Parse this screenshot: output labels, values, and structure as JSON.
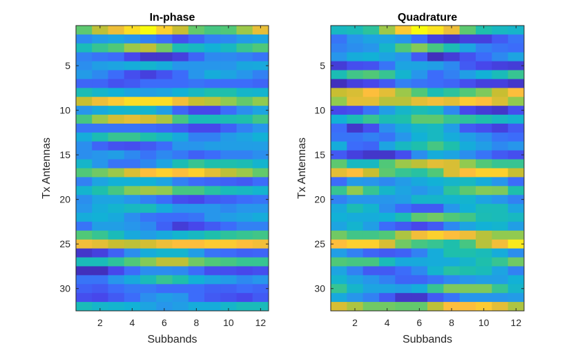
{
  "chart_data": [
    {
      "type": "heatmap",
      "title": "In-phase",
      "xlabel": "Subbands",
      "ylabel": "Tx Antennas",
      "xlim": [
        0.5,
        12.5
      ],
      "ylim": [
        0.5,
        32.5
      ],
      "y_reversed": true,
      "xticks": [
        2,
        4,
        6,
        8,
        10,
        12
      ],
      "yticks": [
        5,
        10,
        15,
        20,
        25,
        30
      ],
      "colormap": "parula",
      "grid": false,
      "values": [
        [
          0.62,
          0.78,
          0.87,
          0.95,
          1.0,
          0.93,
          0.8,
          0.63,
          0.58,
          0.6,
          0.72,
          0.86
        ],
        [
          0.27,
          0.32,
          0.35,
          0.3,
          0.25,
          0.2,
          0.12,
          0.18,
          0.25,
          0.27,
          0.32,
          0.35
        ],
        [
          0.47,
          0.55,
          0.6,
          0.72,
          0.78,
          0.65,
          0.48,
          0.45,
          0.4,
          0.45,
          0.55,
          0.6
        ],
        [
          0.25,
          0.22,
          0.2,
          0.1,
          0.05,
          0.05,
          0.08,
          0.18,
          0.27,
          0.27,
          0.25,
          0.22
        ],
        [
          0.28,
          0.33,
          0.35,
          0.38,
          0.42,
          0.38,
          0.3,
          0.3,
          0.3,
          0.3,
          0.36,
          0.37
        ],
        [
          0.32,
          0.27,
          0.2,
          0.12,
          0.08,
          0.13,
          0.2,
          0.3,
          0.38,
          0.35,
          0.3,
          0.25
        ],
        [
          0.18,
          0.18,
          0.13,
          0.15,
          0.2,
          0.2,
          0.2,
          0.22,
          0.2,
          0.2,
          0.2,
          0.18
        ],
        [
          0.48,
          0.43,
          0.4,
          0.35,
          0.33,
          0.35,
          0.4,
          0.45,
          0.5,
          0.5,
          0.43,
          0.42
        ],
        [
          0.8,
          0.87,
          0.92,
          0.95,
          0.95,
          0.95,
          0.88,
          0.8,
          0.77,
          0.7,
          0.63,
          0.7
        ],
        [
          0.3,
          0.37,
          0.42,
          0.43,
          0.42,
          0.33,
          0.18,
          0.1,
          0.1,
          0.2,
          0.28,
          0.35
        ],
        [
          0.58,
          0.72,
          0.82,
          0.85,
          0.82,
          0.75,
          0.58,
          0.47,
          0.47,
          0.48,
          0.5,
          0.57
        ],
        [
          0.22,
          0.22,
          0.22,
          0.22,
          0.2,
          0.18,
          0.15,
          0.1,
          0.1,
          0.17,
          0.25,
          0.3
        ],
        [
          0.38,
          0.48,
          0.55,
          0.55,
          0.5,
          0.45,
          0.37,
          0.25,
          0.25,
          0.32,
          0.35,
          0.4
        ],
        [
          0.28,
          0.18,
          0.13,
          0.12,
          0.15,
          0.2,
          0.3,
          0.3,
          0.33,
          0.33,
          0.33,
          0.33
        ],
        [
          0.28,
          0.3,
          0.33,
          0.27,
          0.22,
          0.27,
          0.23,
          0.17,
          0.2,
          0.25,
          0.25,
          0.28
        ],
        [
          0.43,
          0.3,
          0.22,
          0.22,
          0.27,
          0.35,
          0.48,
          0.55,
          0.5,
          0.5,
          0.48,
          0.42
        ],
        [
          0.6,
          0.65,
          0.72,
          0.83,
          0.9,
          0.93,
          0.9,
          0.93,
          0.85,
          0.78,
          0.72,
          0.63
        ],
        [
          0.25,
          0.35,
          0.4,
          0.4,
          0.4,
          0.35,
          0.25,
          0.2,
          0.18,
          0.17,
          0.15,
          0.2
        ],
        [
          0.42,
          0.5,
          0.58,
          0.68,
          0.73,
          0.7,
          0.58,
          0.58,
          0.52,
          0.47,
          0.45,
          0.42
        ],
        [
          0.28,
          0.35,
          0.35,
          0.3,
          0.25,
          0.2,
          0.12,
          0.1,
          0.15,
          0.17,
          0.2,
          0.22
        ],
        [
          0.3,
          0.38,
          0.42,
          0.45,
          0.47,
          0.38,
          0.3,
          0.3,
          0.3,
          0.27,
          0.3,
          0.3
        ],
        [
          0.38,
          0.4,
          0.37,
          0.28,
          0.22,
          0.2,
          0.2,
          0.22,
          0.3,
          0.33,
          0.35,
          0.38
        ],
        [
          0.22,
          0.33,
          0.33,
          0.3,
          0.27,
          0.17,
          0.07,
          0.1,
          0.15,
          0.2,
          0.25,
          0.25
        ],
        [
          0.6,
          0.55,
          0.47,
          0.37,
          0.33,
          0.37,
          0.42,
          0.45,
          0.5,
          0.53,
          0.55,
          0.57
        ],
        [
          0.88,
          0.85,
          0.8,
          0.78,
          0.82,
          0.87,
          0.9,
          0.9,
          0.92,
          0.92,
          0.9,
          0.88
        ],
        [
          0.05,
          0.08,
          0.17,
          0.28,
          0.38,
          0.42,
          0.42,
          0.33,
          0.22,
          0.2,
          0.17,
          0.18
        ],
        [
          0.47,
          0.47,
          0.53,
          0.6,
          0.68,
          0.78,
          0.78,
          0.65,
          0.6,
          0.58,
          0.55,
          0.55
        ],
        [
          0.03,
          0.03,
          0.1,
          0.2,
          0.28,
          0.28,
          0.27,
          0.2,
          0.12,
          0.12,
          0.1,
          0.12
        ],
        [
          0.22,
          0.22,
          0.3,
          0.37,
          0.47,
          0.55,
          0.5,
          0.4,
          0.35,
          0.32,
          0.27,
          0.3
        ],
        [
          0.17,
          0.15,
          0.2,
          0.23,
          0.23,
          0.2,
          0.2,
          0.2,
          0.17,
          0.17,
          0.2,
          0.18
        ],
        [
          0.12,
          0.1,
          0.15,
          0.2,
          0.28,
          0.33,
          0.3,
          0.2,
          0.15,
          0.13,
          0.1,
          0.15
        ],
        [
          0.47,
          0.43,
          0.42,
          0.4,
          0.35,
          0.3,
          0.33,
          0.38,
          0.38,
          0.43,
          0.47,
          0.47
        ]
      ]
    },
    {
      "type": "heatmap",
      "title": "Quadrature",
      "xlabel": "Subbands",
      "ylabel": "Tx Antennas",
      "xlim": [
        0.5,
        12.5
      ],
      "ylim": [
        0.5,
        32.5
      ],
      "y_reversed": true,
      "xticks": [
        2,
        4,
        6,
        8,
        10,
        12
      ],
      "yticks": [
        5,
        10,
        15,
        20,
        25,
        30
      ],
      "colormap": "parula",
      "grid": false,
      "values": [
        [
          0.45,
          0.47,
          0.53,
          0.72,
          0.92,
          1.0,
          0.96,
          0.87,
          0.62,
          0.5,
          0.45,
          0.43
        ],
        [
          0.22,
          0.3,
          0.35,
          0.35,
          0.3,
          0.2,
          0.08,
          0.05,
          0.08,
          0.08,
          0.15,
          0.22
        ],
        [
          0.25,
          0.28,
          0.3,
          0.43,
          0.6,
          0.68,
          0.58,
          0.48,
          0.35,
          0.25,
          0.22,
          0.2
        ],
        [
          0.3,
          0.38,
          0.4,
          0.35,
          0.3,
          0.15,
          0.03,
          0.07,
          0.13,
          0.2,
          0.27,
          0.35
        ],
        [
          0.07,
          0.12,
          0.13,
          0.22,
          0.35,
          0.35,
          0.33,
          0.27,
          0.15,
          0.1,
          0.08,
          0.07
        ],
        [
          0.48,
          0.57,
          0.6,
          0.55,
          0.42,
          0.3,
          0.2,
          0.25,
          0.33,
          0.4,
          0.47,
          0.55
        ],
        [
          0.03,
          0.08,
          0.1,
          0.15,
          0.25,
          0.22,
          0.2,
          0.18,
          0.12,
          0.08,
          0.08,
          0.05
        ],
        [
          0.8,
          0.83,
          0.9,
          0.85,
          0.72,
          0.6,
          0.48,
          0.53,
          0.6,
          0.67,
          0.8,
          0.9
        ],
        [
          0.7,
          0.85,
          0.85,
          0.77,
          0.77,
          0.85,
          0.88,
          0.85,
          0.92,
          0.9,
          0.83,
          0.7
        ],
        [
          0.1,
          0.12,
          0.22,
          0.33,
          0.43,
          0.48,
          0.45,
          0.27,
          0.1,
          0.07,
          0.05,
          0.12
        ],
        [
          0.4,
          0.48,
          0.55,
          0.48,
          0.5,
          0.62,
          0.62,
          0.55,
          0.53,
          0.5,
          0.45,
          0.42
        ],
        [
          0.2,
          0.05,
          0.12,
          0.28,
          0.37,
          0.43,
          0.45,
          0.33,
          0.15,
          0.12,
          0.08,
          0.15
        ],
        [
          0.22,
          0.22,
          0.25,
          0.22,
          0.3,
          0.4,
          0.45,
          0.38,
          0.33,
          0.28,
          0.22,
          0.2
        ],
        [
          0.38,
          0.2,
          0.18,
          0.35,
          0.45,
          0.5,
          0.58,
          0.5,
          0.38,
          0.33,
          0.27,
          0.3
        ],
        [
          0.15,
          0.08,
          0.05,
          0.05,
          0.12,
          0.28,
          0.38,
          0.35,
          0.28,
          0.22,
          0.15,
          0.12
        ],
        [
          0.62,
          0.45,
          0.45,
          0.6,
          0.72,
          0.78,
          0.85,
          0.83,
          0.7,
          0.6,
          0.55,
          0.55
        ],
        [
          0.85,
          0.9,
          0.8,
          0.62,
          0.55,
          0.52,
          0.6,
          0.83,
          0.9,
          0.93,
          0.93,
          0.8
        ],
        [
          0.2,
          0.32,
          0.3,
          0.27,
          0.32,
          0.37,
          0.4,
          0.43,
          0.45,
          0.38,
          0.3,
          0.2
        ],
        [
          0.55,
          0.7,
          0.55,
          0.43,
          0.35,
          0.3,
          0.35,
          0.53,
          0.62,
          0.68,
          0.67,
          0.5
        ],
        [
          0.25,
          0.3,
          0.3,
          0.3,
          0.33,
          0.43,
          0.43,
          0.42,
          0.42,
          0.35,
          0.3,
          0.25
        ],
        [
          0.37,
          0.48,
          0.42,
          0.28,
          0.2,
          0.15,
          0.15,
          0.3,
          0.4,
          0.47,
          0.47,
          0.35
        ],
        [
          0.4,
          0.38,
          0.38,
          0.4,
          0.48,
          0.62,
          0.65,
          0.6,
          0.57,
          0.48,
          0.47,
          0.45
        ],
        [
          0.35,
          0.42,
          0.33,
          0.2,
          0.15,
          0.1,
          0.15,
          0.27,
          0.35,
          0.4,
          0.42,
          0.33
        ],
        [
          0.65,
          0.57,
          0.57,
          0.6,
          0.75,
          0.88,
          0.93,
          0.9,
          0.87,
          0.77,
          0.7,
          0.7
        ],
        [
          0.9,
          0.93,
          0.93,
          0.83,
          0.65,
          0.58,
          0.55,
          0.5,
          0.58,
          0.77,
          0.88,
          0.97
        ],
        [
          0.33,
          0.25,
          0.18,
          0.15,
          0.17,
          0.25,
          0.38,
          0.5,
          0.5,
          0.47,
          0.38,
          0.28
        ],
        [
          0.6,
          0.58,
          0.58,
          0.47,
          0.37,
          0.37,
          0.38,
          0.38,
          0.43,
          0.5,
          0.55,
          0.65
        ],
        [
          0.35,
          0.25,
          0.15,
          0.15,
          0.2,
          0.27,
          0.42,
          0.52,
          0.5,
          0.47,
          0.35,
          0.25
        ],
        [
          0.42,
          0.35,
          0.3,
          0.25,
          0.18,
          0.18,
          0.22,
          0.27,
          0.3,
          0.33,
          0.33,
          0.4
        ],
        [
          0.55,
          0.43,
          0.35,
          0.35,
          0.33,
          0.38,
          0.55,
          0.67,
          0.67,
          0.67,
          0.55,
          0.43
        ],
        [
          0.37,
          0.3,
          0.25,
          0.15,
          0.05,
          0.05,
          0.15,
          0.22,
          0.3,
          0.3,
          0.3,
          0.32
        ],
        [
          0.83,
          0.75,
          0.65,
          0.65,
          0.63,
          0.63,
          0.78,
          0.9,
          0.9,
          0.92,
          0.85,
          0.75
        ]
      ]
    }
  ]
}
